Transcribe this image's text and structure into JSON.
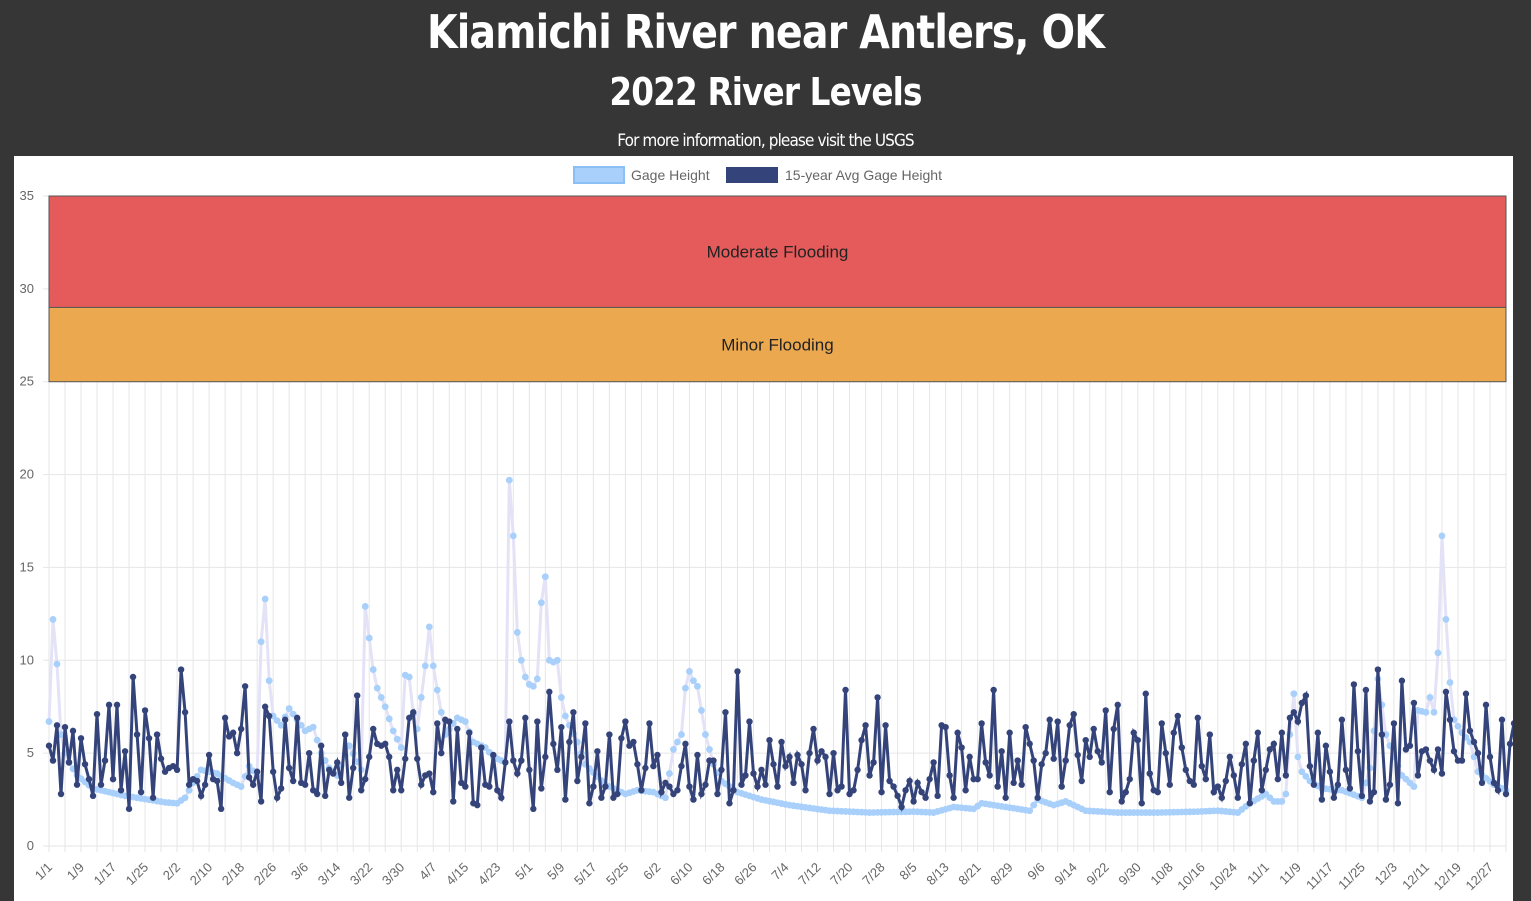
{
  "header": {
    "title": "Kiamichi River near Antlers, OK",
    "subtitle": "2022 River Levels",
    "info_prefix": "For more information, please visit the ",
    "info_link": "USGS"
  },
  "chart_data": {
    "type": "line",
    "year": 2022,
    "ylim": [
      0,
      35
    ],
    "y_ticks": [
      0,
      5,
      10,
      15,
      20,
      25,
      30,
      35
    ],
    "legend_position": "top",
    "grid": true,
    "x_tick_labels": [
      "1/1",
      "1/9",
      "1/17",
      "1/25",
      "2/2",
      "2/10",
      "2/18",
      "2/26",
      "3/6",
      "3/14",
      "3/22",
      "3/30",
      "4/7",
      "4/15",
      "4/23",
      "5/1",
      "5/9",
      "5/17",
      "5/25",
      "6/2",
      "6/10",
      "6/18",
      "6/26",
      "7/4",
      "7/12",
      "7/20",
      "7/28",
      "8/5",
      "8/13",
      "8/21",
      "8/29",
      "9/6",
      "9/14",
      "9/22",
      "9/30",
      "10/8",
      "10/16",
      "10/24",
      "11/1",
      "11/9",
      "11/17",
      "11/25",
      "12/3",
      "12/11",
      "12/19",
      "12/27"
    ],
    "bands": [
      {
        "label": "Moderate Flooding",
        "from": 29,
        "to": 35,
        "color": "#e55b5b"
      },
      {
        "label": "Minor Flooding",
        "from": 25,
        "to": 29,
        "color": "#eba84e"
      }
    ],
    "series": [
      {
        "name": "Gage Height",
        "color": "#a8d0fb",
        "line_color": "#e4e2f7",
        "anchors": [
          [
            "1/1",
            6.7
          ],
          [
            "1/2",
            12.2
          ],
          [
            "1/3",
            9.8
          ],
          [
            "1/4",
            6.0
          ],
          [
            "1/5",
            5.0
          ],
          [
            "1/6",
            4.5
          ],
          [
            "1/8",
            3.8
          ],
          [
            "1/12",
            3.1
          ],
          [
            "1/20",
            2.7
          ],
          [
            "1/30",
            2.35
          ],
          [
            "2/2",
            2.3
          ],
          [
            "2/4",
            2.6
          ],
          [
            "2/6",
            3.4
          ],
          [
            "2/8",
            4.1
          ],
          [
            "2/12",
            3.9
          ],
          [
            "2/16",
            3.4
          ],
          [
            "2/18",
            3.2
          ],
          [
            "2/20",
            4.3
          ],
          [
            "2/22",
            3.8
          ],
          [
            "2/23",
            11.0
          ],
          [
            "2/24",
            13.3
          ],
          [
            "2/25",
            8.9
          ],
          [
            "2/26",
            7.0
          ],
          [
            "2/28",
            6.5
          ],
          [
            "3/2",
            7.4
          ],
          [
            "3/4",
            6.8
          ],
          [
            "3/6",
            6.2
          ],
          [
            "3/8",
            6.4
          ],
          [
            "3/10",
            5.0
          ],
          [
            "3/12",
            4.2
          ],
          [
            "3/14",
            3.8
          ],
          [
            "3/17",
            5.4
          ],
          [
            "3/20",
            4.1
          ],
          [
            "3/21",
            12.9
          ],
          [
            "3/22",
            11.2
          ],
          [
            "3/23",
            9.5
          ],
          [
            "3/24",
            8.5
          ],
          [
            "3/26",
            7.5
          ],
          [
            "3/28",
            6.2
          ],
          [
            "3/30",
            5.3
          ],
          [
            "3/31",
            9.2
          ],
          [
            "4/1",
            9.1
          ],
          [
            "4/2",
            7.1
          ],
          [
            "4/3",
            6.3
          ],
          [
            "4/5",
            9.7
          ],
          [
            "4/6",
            11.8
          ],
          [
            "4/7",
            9.7
          ],
          [
            "4/8",
            8.4
          ],
          [
            "4/10",
            6.0
          ],
          [
            "4/13",
            6.9
          ],
          [
            "4/15",
            6.7
          ],
          [
            "4/17",
            5.6
          ],
          [
            "4/20",
            5.3
          ],
          [
            "4/22",
            4.8
          ],
          [
            "4/25",
            4.5
          ],
          [
            "4/26",
            19.7
          ],
          [
            "4/27",
            16.7
          ],
          [
            "4/28",
            11.5
          ],
          [
            "4/29",
            10.0
          ],
          [
            "4/30",
            9.1
          ],
          [
            "5/1",
            8.7
          ],
          [
            "5/2",
            8.6
          ],
          [
            "5/3",
            9.0
          ],
          [
            "5/4",
            13.1
          ],
          [
            "5/5",
            14.5
          ],
          [
            "5/6",
            10.0
          ],
          [
            "5/7",
            9.9
          ],
          [
            "5/8",
            10.0
          ],
          [
            "5/9",
            8.0
          ],
          [
            "5/10",
            7.0
          ],
          [
            "5/11",
            6.5
          ],
          [
            "5/13",
            5.6
          ],
          [
            "5/15",
            4.4
          ],
          [
            "5/20",
            3.3
          ],
          [
            "5/25",
            2.8
          ],
          [
            "5/28",
            3.0
          ],
          [
            "6/1",
            2.9
          ],
          [
            "6/4",
            2.6
          ],
          [
            "6/6",
            5.2
          ],
          [
            "6/8",
            6.0
          ],
          [
            "6/9",
            8.5
          ],
          [
            "6/10",
            9.4
          ],
          [
            "6/11",
            8.9
          ],
          [
            "6/12",
            8.6
          ],
          [
            "6/14",
            6.0
          ],
          [
            "6/16",
            4.4
          ],
          [
            "6/18",
            3.5
          ],
          [
            "6/22",
            2.9
          ],
          [
            "6/28",
            2.5
          ],
          [
            "7/5",
            2.2
          ],
          [
            "7/15",
            1.9
          ],
          [
            "7/25",
            1.8
          ],
          [
            "8/5",
            1.85
          ],
          [
            "8/10",
            1.8
          ],
          [
            "8/15",
            2.1
          ],
          [
            "8/20",
            2.0
          ],
          [
            "8/22",
            2.3
          ],
          [
            "8/28",
            2.1
          ],
          [
            "9/3",
            1.9
          ],
          [
            "9/5",
            2.5
          ],
          [
            "9/9",
            2.2
          ],
          [
            "9/12",
            2.4
          ],
          [
            "9/17",
            1.9
          ],
          [
            "9/25",
            1.8
          ],
          [
            "10/5",
            1.8
          ],
          [
            "10/15",
            1.85
          ],
          [
            "10/20",
            1.9
          ],
          [
            "10/25",
            1.8
          ],
          [
            "10/28",
            2.3
          ],
          [
            "11/1",
            2.8
          ],
          [
            "11/3",
            2.4
          ],
          [
            "11/5",
            2.4
          ],
          [
            "11/6",
            2.8
          ],
          [
            "11/7",
            6.0
          ],
          [
            "11/8",
            8.2
          ],
          [
            "11/9",
            4.8
          ],
          [
            "11/10",
            4.0
          ],
          [
            "11/12",
            3.5
          ],
          [
            "11/15",
            3.1
          ],
          [
            "11/20",
            3.0
          ],
          [
            "11/25",
            2.6
          ],
          [
            "11/27",
            4.2
          ],
          [
            "11/28",
            6.2
          ],
          [
            "11/29",
            9.0
          ],
          [
            "11/30",
            7.6
          ],
          [
            "12/1",
            6.0
          ],
          [
            "12/3",
            4.8
          ],
          [
            "12/5",
            3.8
          ],
          [
            "12/8",
            3.2
          ],
          [
            "12/9",
            7.3
          ],
          [
            "12/11",
            7.2
          ],
          [
            "12/12",
            8.0
          ],
          [
            "12/13",
            7.2
          ],
          [
            "12/14",
            10.4
          ],
          [
            "12/15",
            16.7
          ],
          [
            "12/16",
            12.2
          ],
          [
            "12/17",
            8.8
          ],
          [
            "12/18",
            6.8
          ],
          [
            "12/20",
            6.1
          ],
          [
            "12/22",
            5.6
          ],
          [
            "12/24",
            4.0
          ],
          [
            "12/28",
            3.3
          ],
          [
            "12/31",
            3.0
          ]
        ]
      },
      {
        "name": "15-year Avg Gage Height",
        "color": "#34447a",
        "line_color": "#34447a",
        "values": [
          5.4,
          4.6,
          6.5,
          2.8,
          6.4,
          4.5,
          6.2,
          3.3,
          5.8,
          4.4,
          3.6,
          2.7,
          7.1,
          3.3,
          4.6,
          7.6,
          3.6,
          7.6,
          3.0,
          5.1,
          2.0,
          9.1,
          6.0,
          2.9,
          7.3,
          5.8,
          2.6,
          6.0,
          4.7,
          4.0,
          4.2,
          4.3,
          4.1,
          9.5,
          7.2,
          3.3,
          3.6,
          3.5,
          2.7,
          3.3,
          4.9,
          3.6,
          3.5,
          2.0,
          6.9,
          5.9,
          6.1,
          5.0,
          6.3,
          8.6,
          3.7,
          3.3,
          4.0,
          2.4,
          7.5,
          7.0,
          4.0,
          2.6,
          3.1,
          6.8,
          4.2,
          3.5,
          6.9,
          3.4,
          3.3,
          5.0,
          3.0,
          2.8,
          5.4,
          2.7,
          4.1,
          3.9,
          4.5,
          3.4,
          6.0,
          2.6,
          4.2,
          8.1,
          3.0,
          3.6,
          4.8,
          6.3,
          5.5,
          5.4,
          5.5,
          4.8,
          3.0,
          4.1,
          3.0,
          4.7,
          6.9,
          7.2,
          4.7,
          3.3,
          3.8,
          3.9,
          2.9,
          6.6,
          5.0,
          6.8,
          6.7,
          2.4,
          6.3,
          3.4,
          3.2,
          6.1,
          2.3,
          2.2,
          5.3,
          3.3,
          3.2,
          4.9,
          3.0,
          2.6,
          4.5,
          6.7,
          4.6,
          3.9,
          4.6,
          6.9,
          4.1,
          2.0,
          6.7,
          3.1,
          4.8,
          8.3,
          5.5,
          4.1,
          6.4,
          2.5,
          5.6,
          7.2,
          3.5,
          4.8,
          6.6,
          2.3,
          3.2,
          5.1,
          2.6,
          3.2,
          6.0,
          2.6,
          2.8,
          5.8,
          6.7,
          5.4,
          5.6,
          4.4,
          3.0,
          4.2,
          6.6,
          4.3,
          4.9,
          2.9,
          3.4,
          3.2,
          2.8,
          3.0,
          4.3,
          5.5,
          3.2,
          2.5,
          4.9,
          2.8,
          3.3,
          4.6,
          4.6,
          2.8,
          4.1,
          7.2,
          2.3,
          3.0,
          9.4,
          3.3,
          3.8,
          6.7,
          3.9,
          3.2,
          4.1,
          3.3,
          5.7,
          4.4,
          3.2,
          5.6,
          4.3,
          4.8,
          3.4,
          4.9,
          4.4,
          3.0,
          5.0,
          6.3,
          4.6,
          5.1,
          4.8,
          2.8,
          5.0,
          3.0,
          3.2,
          8.4,
          2.8,
          3.0,
          4.1,
          5.7,
          6.5,
          3.8,
          4.5,
          8.0,
          2.9,
          6.5,
          3.5,
          3.2,
          2.7,
          2.1,
          3.0,
          3.5,
          2.4,
          3.4,
          2.9,
          2.6,
          3.6,
          4.5,
          2.7,
          6.5,
          6.4,
          3.8,
          2.6,
          6.1,
          5.3,
          3.0,
          4.8,
          3.6,
          3.6,
          6.6,
          4.5,
          3.8,
          8.4,
          3.2,
          5.1,
          2.6,
          6.1,
          3.4,
          4.6,
          3.3,
          6.4,
          5.5,
          4.6,
          2.6,
          4.4,
          5.0,
          6.8,
          4.7,
          6.7,
          3.2,
          4.6,
          6.5,
          7.1,
          4.9,
          3.5,
          5.7,
          4.8,
          6.3,
          5.1,
          4.5,
          7.3,
          2.9,
          6.3,
          7.6,
          2.4,
          2.9,
          3.6,
          6.1,
          5.7,
          2.3,
          8.2,
          3.9,
          3.0,
          2.9,
          6.6,
          5.0,
          3.3,
          6.1,
          7.0,
          5.3,
          4.1,
          3.5,
          3.3,
          6.9,
          4.3,
          3.6,
          6.0,
          2.9,
          3.2,
          2.6,
          3.5,
          4.8,
          3.8,
          2.6,
          4.4,
          5.5,
          2.3,
          4.6,
          6.1,
          3.0,
          4.1,
          5.2,
          5.5,
          3.6,
          6.1,
          3.8,
          6.9,
          7.2,
          6.7,
          7.7,
          8.1,
          4.3,
          3.3,
          6.1,
          2.5,
          5.4,
          4.0,
          2.6,
          3.3,
          6.8,
          4.1,
          3.1,
          8.7,
          5.1,
          2.7,
          8.4,
          2.4,
          2.9,
          9.5,
          6.0,
          2.5,
          3.3,
          6.6,
          2.3,
          8.9,
          5.2,
          5.4,
          7.7,
          3.8,
          5.1,
          5.2,
          4.6,
          4.1,
          5.2,
          3.9,
          8.3,
          6.8,
          5.1,
          4.6,
          4.6,
          8.2,
          6.2,
          5.6,
          5.0,
          3.4,
          7.6,
          4.8,
          3.4,
          3.0,
          6.8,
          2.8,
          5.5,
          6.6,
          3.0,
          2.9,
          7.8,
          6.3,
          3.2,
          5.7,
          4.7,
          3.6,
          6.2,
          3.1,
          2.6,
          2.4,
          4.7,
          3.0,
          4.3,
          7.1,
          5.4,
          3.6,
          4.3,
          2.6,
          3.3,
          5.3,
          4.1,
          6.2,
          3.4,
          2.7,
          3.2,
          4.6,
          3.9,
          2.3,
          2.9,
          5.5,
          4.1,
          2.6,
          2.6,
          7.2,
          4.3,
          3.1,
          4.0,
          6.8,
          6.3,
          2.7,
          3.2,
          3.9,
          5.0,
          3.5,
          7.0,
          2.7,
          4.3,
          7.1,
          3.3,
          3.3,
          7.4,
          4.5,
          2.5,
          2.6,
          3.0,
          2.4,
          4.3,
          2.7,
          5.3,
          2.6,
          3.8,
          4.4,
          4.0,
          3.9,
          5.1,
          2.7,
          6.1,
          3.1,
          2.6,
          5.1,
          5.4,
          3.0,
          2.9,
          5.7,
          5.7,
          4.0,
          2.6,
          6.8,
          5.2,
          4.0,
          2.6,
          5.6,
          3.3,
          2.6,
          6.9,
          6.2,
          5.8,
          2.8,
          6.9,
          5.8,
          4.8,
          5.3,
          4.5,
          4.3,
          2.5,
          5.1,
          5.5,
          3.3,
          4.1,
          6.4,
          5.6,
          3.6,
          2.6,
          3.2,
          5.1,
          6.0,
          3.3,
          3.2,
          2.6,
          4.4,
          5.2,
          6.8,
          4.7,
          6.7,
          4.6,
          5.2,
          2.4,
          6.0,
          5.9,
          2.1,
          5.6,
          2.6,
          3.2,
          3.4,
          5.7,
          4.5,
          5.6,
          3.3,
          3.1,
          3.9,
          4.6,
          2.6,
          2.2,
          4.0,
          6.8,
          4.9,
          6.6,
          5.0,
          2.7,
          2.8,
          4.5,
          5.9,
          3.5,
          6.0,
          5.4,
          7.9,
          5.6,
          3.9,
          3.1,
          3.8,
          3.2,
          2.8,
          3.3,
          3.7,
          2.9,
          5.6,
          6.0,
          3.5,
          6.8,
          3.3,
          3.0,
          4.1,
          3.9,
          2.6,
          2.0,
          3.9,
          6.4,
          6.0,
          3.4,
          3.1,
          4.6,
          5.0,
          2.7
        ]
      }
    ]
  }
}
